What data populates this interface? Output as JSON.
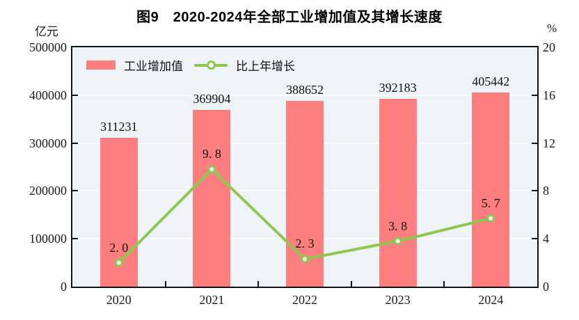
{
  "header": {
    "title": "图9　2020-2024年全部工业增加值及其增长速度"
  },
  "axes": {
    "left_unit": "亿元",
    "right_unit": "%"
  },
  "legend": [
    {
      "label": "工业增加值",
      "type": "bar",
      "color": "#FC7E7E"
    },
    {
      "label": "比上年增长",
      "type": "line",
      "color": "#8DC750"
    }
  ],
  "colors": {
    "bar": "#FC7E7E",
    "line": "#8DC750",
    "marker_fill": "#FFFFFF",
    "plot_background": "#EEF3F7",
    "gridline": "#FFFFFF",
    "frame": "#111111",
    "text": "#1A1A1A"
  },
  "chart_data": {
    "type": "bar",
    "subtype": "bar+line dual-axis",
    "title": "图9　2020-2024年全部工业增加值及其增长速度",
    "categories": [
      "2020",
      "2021",
      "2022",
      "2023",
      "2024"
    ],
    "series": [
      {
        "name": "工业增加值",
        "type": "bar",
        "axis": "left",
        "unit": "亿元",
        "color": "#FC7E7E",
        "values": [
          311231,
          369904,
          388652,
          392183,
          405442
        ],
        "labels": [
          "311231",
          "369904",
          "388652",
          "392183",
          "405442"
        ]
      },
      {
        "name": "比上年增长",
        "type": "line",
        "axis": "right",
        "unit": "%",
        "color": "#8DC750",
        "values": [
          2.0,
          9.8,
          2.3,
          3.8,
          5.7
        ],
        "labels": [
          "2. 0",
          "9. 8",
          "2. 3",
          "3. 8",
          "5. 7"
        ]
      }
    ],
    "left_axis": {
      "min": 0,
      "max": 500000,
      "tick_step": 100000,
      "ticks": [
        "0",
        "100000",
        "200000",
        "300000",
        "400000",
        "500000"
      ]
    },
    "right_axis": {
      "min": 0,
      "max": 20,
      "tick_step": 4,
      "ticks": [
        "0",
        "4",
        "8",
        "12",
        "16",
        "20"
      ]
    },
    "grid": true,
    "legend_position": "top-left"
  }
}
